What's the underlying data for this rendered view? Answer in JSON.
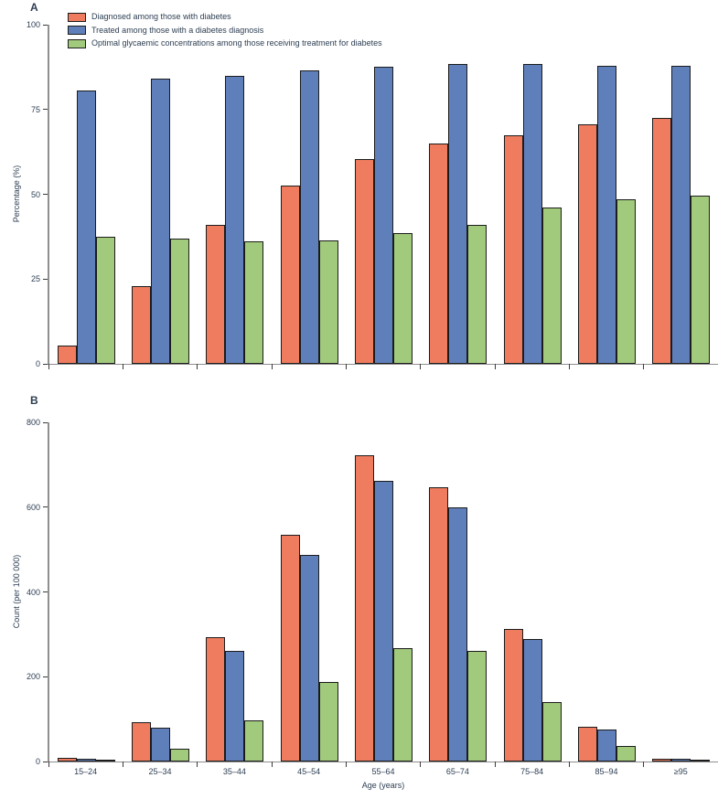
{
  "figure": {
    "background": "#ffffff",
    "text_color": "#2d3e52",
    "axis_color": "#8f8f8f",
    "bar_outline_color": "#1c1c1c"
  },
  "chart_data": [
    {
      "type": "bar",
      "panel_label": "A",
      "title": "",
      "xlabel": "",
      "ylabel": "Percentage (%)",
      "ylim": [
        0,
        100
      ],
      "yticks": [
        0,
        25,
        50,
        75,
        100
      ],
      "grid": false,
      "legend_position": "top-left",
      "show_x_labels": false,
      "categories": [
        "15–24",
        "25–34",
        "35–44",
        "45–54",
        "55–64",
        "65–74",
        "75–84",
        "85–94",
        "≥95"
      ],
      "series": [
        {
          "name": "Diagnosed among those with diabetes",
          "color": "#EF7C5E",
          "values": [
            5.5,
            23,
            41,
            52.5,
            60.5,
            65,
            67.5,
            70.5,
            72.5
          ]
        },
        {
          "name": "Treated among those with a diabetes diagnosis",
          "color": "#5F7FBA",
          "values": [
            80.5,
            84,
            85,
            86.5,
            87.5,
            88.5,
            88.5,
            88,
            88
          ]
        },
        {
          "name": "Optimal glycaemic concentrations among those receiving treatment for diabetes",
          "color": "#A2CA7C",
          "values": [
            37.5,
            37,
            36,
            36.5,
            38.5,
            41,
            46,
            48.5,
            49.5
          ]
        }
      ]
    },
    {
      "type": "bar",
      "panel_label": "B",
      "title": "",
      "xlabel": "Age (years)",
      "ylabel": "Count (per 100 000)",
      "ylim": [
        0,
        800
      ],
      "yticks": [
        0,
        200,
        400,
        600,
        800
      ],
      "grid": false,
      "legend_position": "none",
      "show_x_labels": true,
      "categories": [
        "15–24",
        "25–34",
        "35–44",
        "45–54",
        "55–64",
        "65–74",
        "75–84",
        "85–94",
        "≥95"
      ],
      "series": [
        {
          "name": "Diagnosed among those with diabetes",
          "color": "#EF7C5E",
          "values": [
            8,
            92,
            293,
            535,
            722,
            648,
            313,
            83,
            7
          ]
        },
        {
          "name": "Treated among those with a diabetes diagnosis",
          "color": "#5F7FBA",
          "values": [
            6,
            80,
            261,
            487,
            663,
            600,
            290,
            76,
            6
          ]
        },
        {
          "name": "Optimal glycaemic concentrations among those receiving treatment for diabetes",
          "color": "#A2CA7C",
          "values": [
            2,
            31,
            98,
            187,
            268,
            260,
            140,
            37,
            2
          ]
        }
      ]
    }
  ]
}
